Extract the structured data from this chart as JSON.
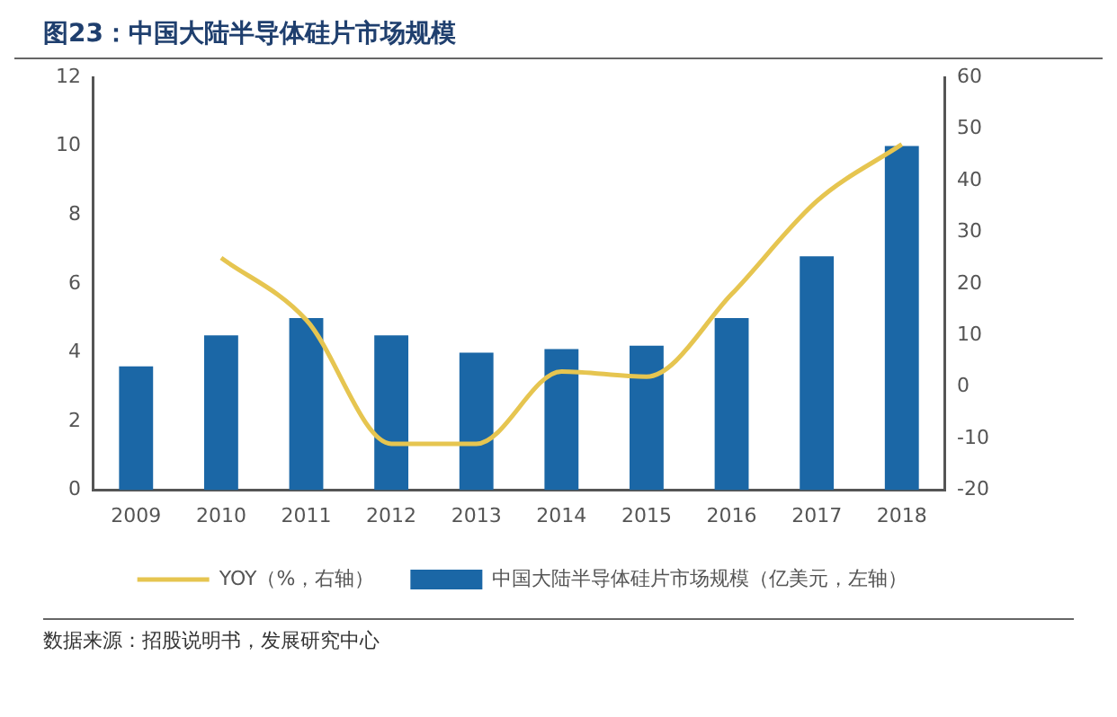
{
  "chart_data": {
    "type": "bar",
    "title": "图23：中国大陆半导体硅片市场规模",
    "categories": [
      "2009",
      "2010",
      "2011",
      "2012",
      "2013",
      "2014",
      "2015",
      "2016",
      "2017",
      "2018"
    ],
    "series": [
      {
        "name": "中国大陆半导体硅片市场规模（亿美元，左轴）",
        "color": "#1b67a6",
        "values": [
          3.6,
          4.5,
          5.0,
          4.5,
          4.0,
          4.1,
          4.2,
          5.0,
          6.8,
          10.0
        ]
      },
      {
        "name": "YOY（%，右轴）",
        "type": "line",
        "axis": "y2",
        "color": "#e6c550",
        "values": [
          null,
          25,
          13,
          -11,
          -11,
          3,
          2,
          18,
          36,
          47
        ]
      }
    ],
    "ylim": [
      0,
      12
    ],
    "yticks": [
      0,
      2,
      4,
      6,
      8,
      10,
      12
    ],
    "y2lim": [
      -20,
      60
    ],
    "y2ticks": [
      -20,
      -10,
      0,
      10,
      20,
      30,
      40,
      50,
      60
    ],
    "grid": false,
    "legend": "bottom",
    "marker": "none",
    "annotations": [
      "数据来源：招股说明书，发展研究中心"
    ]
  }
}
